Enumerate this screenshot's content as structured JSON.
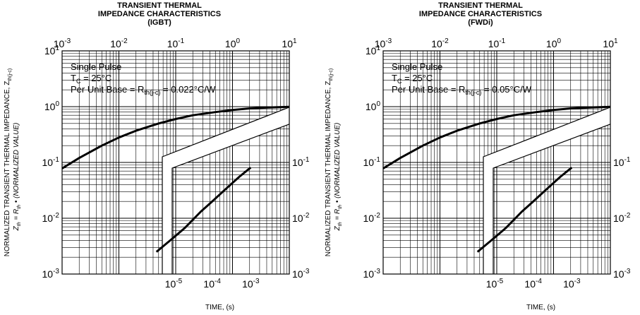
{
  "charts": [
    {
      "title_line1": "TRANSIENT THERMAL",
      "title_line2": "IMPEDANCE CHARACTERISTICS",
      "title_line3": "(IGBT)",
      "note_line1": "Single Pulse",
      "note_line2": "T",
      "note_line2_sub": "C",
      "note_line2_rest": " = 25°C",
      "note_line3": "Per Unit Base = R",
      "note_line3_sub": "th(j-c)",
      "note_line3_rest": " = 0.022°C/W",
      "xlabel": "TIME, (s)",
      "ylabel_main": "NORMALIZED TRANSIENT THERMAL IMPEDANCE, Z",
      "ylabel_main_sub": "th(j-c)",
      "ylabel_sub": "Z",
      "ylabel_sub_rest": "th",
      "ylabel_sub_eq": " = R",
      "ylabel_sub_rest2": "th",
      "ylabel_sub_tail": " • (NORMALIZED VALUE)"
    },
    {
      "title_line1": "TRANSIENT THERMAL",
      "title_line2": "IMPEDANCE CHARACTERISTICS",
      "title_line3": "(FWDi)",
      "note_line1": "Single Pulse",
      "note_line2": "T",
      "note_line2_sub": "C",
      "note_line2_rest": " = 25°C",
      "note_line3": "Per Unit Base = R",
      "note_line3_sub": "th(j-c)",
      "note_line3_rest": " = 0.05°C/W",
      "xlabel": "TIME, (s)",
      "ylabel_main": "NORMALIZED TRANSIENT THERMAL IMPEDANCE, Z",
      "ylabel_main_sub": "th(j-c)",
      "ylabel_sub": "Z",
      "ylabel_sub_rest": "th",
      "ylabel_sub_eq": " = R",
      "ylabel_sub_rest2": "th",
      "ylabel_sub_tail": " • (NORMALIZED VALUE)"
    }
  ],
  "chart_data": [
    {
      "type": "line",
      "title": "TRANSIENT THERMAL IMPEDANCE CHARACTERISTICS (IGBT)",
      "xlabel": "TIME, (s)",
      "ylabel": "NORMALIZED TRANSIENT THERMAL IMPEDANCE, Zth(j-c)",
      "xscale": "log",
      "yscale": "log",
      "grid": true,
      "upper_region": {
        "xlim": [
          0.001,
          10
        ],
        "ylim": [
          0.001,
          10
        ],
        "x_ticks": [
          "10-3",
          "10-2",
          "10-1",
          "100",
          "101"
        ],
        "y_ticks": [
          "10-3",
          "10-2",
          "10-1",
          "100",
          "101"
        ],
        "series": [
          {
            "x": [
              0.001,
              0.002,
              0.005,
              0.01,
              0.02,
              0.05,
              0.1,
              0.2,
              0.5,
              1,
              2,
              5,
              10
            ],
            "y": [
              0.078,
              0.12,
              0.2,
              0.28,
              0.37,
              0.5,
              0.6,
              0.7,
              0.8,
              0.87,
              0.93,
              0.97,
              0.99
            ]
          }
        ]
      },
      "lower_region": {
        "xlim": [
          1e-06,
          0.001
        ],
        "ylim": [
          0.001,
          10
        ],
        "x_ticks": [
          "10-5",
          "10-4",
          "10-3"
        ],
        "y_ticks": [
          "10-3",
          "10-2",
          "10-1"
        ],
        "series": [
          {
            "x": [
              3.6e-06,
              1e-05,
              2e-05,
              5e-05,
              0.0001,
              0.0002,
              0.0005,
              0.001
            ],
            "y": [
              0.0025,
              0.0045,
              0.0068,
              0.013,
              0.02,
              0.031,
              0.055,
              0.081
            ]
          }
        ]
      }
    },
    {
      "type": "line",
      "title": "TRANSIENT THERMAL IMPEDANCE CHARACTERISTICS (FWDi)",
      "xlabel": "TIME, (s)",
      "ylabel": "NORMALIZED TRANSIENT THERMAL IMPEDANCE, Zth(j-c)",
      "xscale": "log",
      "yscale": "log",
      "grid": true,
      "upper_region": {
        "xlim": [
          0.001,
          10
        ],
        "ylim": [
          0.001,
          10
        ],
        "x_ticks": [
          "10-3",
          "10-2",
          "10-1",
          "100",
          "101"
        ],
        "y_ticks": [
          "10-3",
          "10-2",
          "10-1",
          "100",
          "101"
        ],
        "series": [
          {
            "x": [
              0.001,
              0.002,
              0.005,
              0.01,
              0.02,
              0.05,
              0.1,
              0.2,
              0.5,
              1,
              2,
              5,
              10
            ],
            "y": [
              0.078,
              0.12,
              0.2,
              0.28,
              0.37,
              0.5,
              0.6,
              0.7,
              0.8,
              0.87,
              0.93,
              0.97,
              0.99
            ]
          }
        ]
      },
      "lower_region": {
        "xlim": [
          1e-06,
          0.001
        ],
        "ylim": [
          0.001,
          10
        ],
        "x_ticks": [
          "10-5",
          "10-4",
          "10-3"
        ],
        "y_ticks": [
          "10-3",
          "10-2",
          "10-1"
        ],
        "series": [
          {
            "x": [
              3.6e-06,
              1e-05,
              2e-05,
              5e-05,
              0.0001,
              0.0002,
              0.0005,
              0.001
            ],
            "y": [
              0.0025,
              0.0045,
              0.0068,
              0.013,
              0.02,
              0.031,
              0.055,
              0.081
            ]
          }
        ]
      }
    }
  ]
}
